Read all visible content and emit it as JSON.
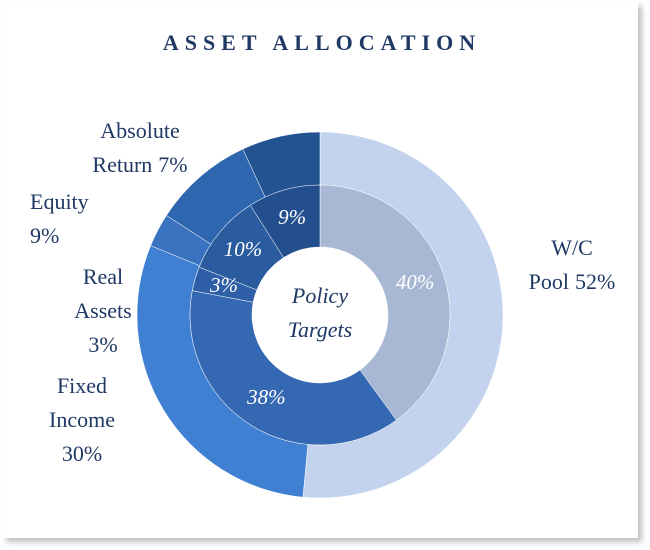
{
  "chart_data": {
    "type": "donut",
    "title": "ASSET ALLOCATION",
    "center_label": "Policy Targets",
    "outer": {
      "categories": [
        "W/C Pool",
        "Fixed Income",
        "Real Assets",
        "Equity",
        "Absolute Return"
      ],
      "values": [
        52,
        30,
        3,
        9,
        7
      ],
      "value_labels": [
        "52%",
        "30%",
        "3%",
        "9%",
        "7%"
      ],
      "colors": [
        "#c3d3ee",
        "#3f80d2",
        "#3a72bf",
        "#2f66b0",
        "#245392"
      ]
    },
    "inner": {
      "values": [
        40,
        38,
        3,
        10,
        9
      ],
      "value_labels": [
        "40%",
        "38%",
        "3%",
        "10%",
        "9%"
      ],
      "colors": [
        "#a8b8d4",
        "#3568b2",
        "#2e5fa6",
        "#2b5ca0",
        "#244f8e"
      ]
    }
  }
}
